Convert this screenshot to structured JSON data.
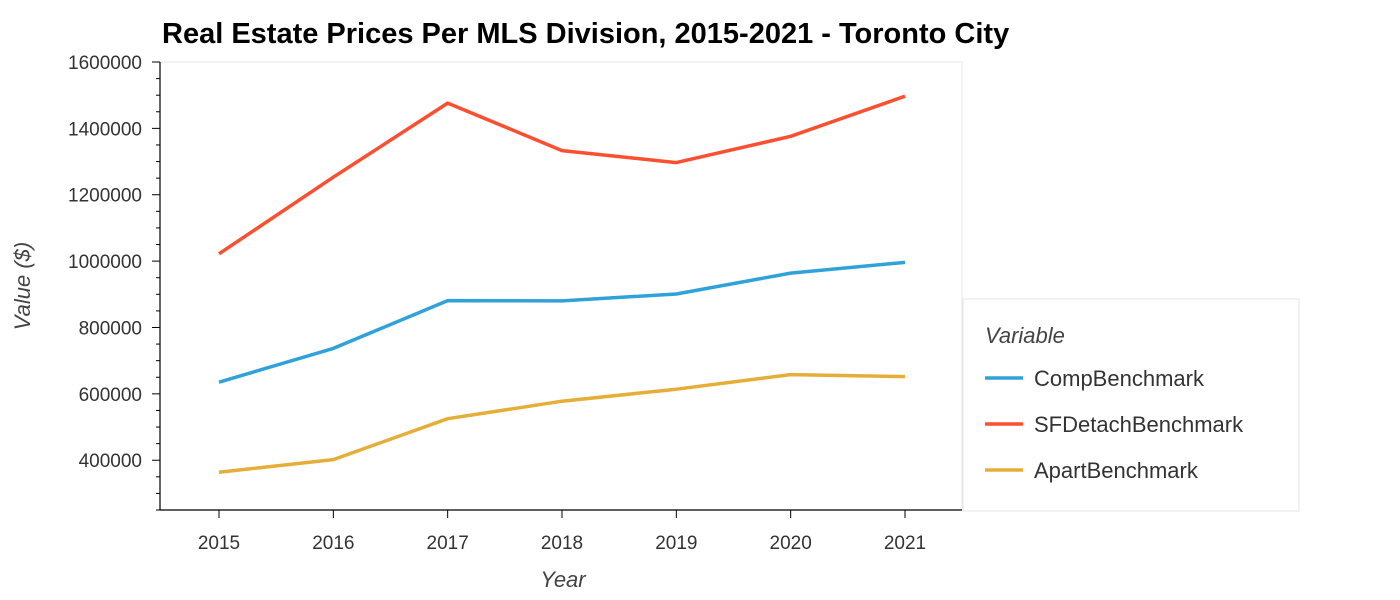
{
  "chart_data": {
    "type": "line",
    "title": "Real Estate Prices Per MLS Division, 2015-2021 - Toronto City",
    "xlabel": "Year",
    "ylabel": "Value ($)",
    "x": [
      2015,
      2016,
      2017,
      2018,
      2019,
      2020,
      2021
    ],
    "x_tick_labels": [
      "2015",
      "2016",
      "2017",
      "2018",
      "2019",
      "2020",
      "2021"
    ],
    "ylim": [
      250000,
      1600000
    ],
    "y_ticks": [
      400000,
      600000,
      800000,
      1000000,
      1200000,
      1400000,
      1600000
    ],
    "y_tick_labels": [
      "400000",
      "600000",
      "800000",
      "1000000",
      "1200000",
      "1400000",
      "1600000"
    ],
    "grid": false,
    "legend": {
      "title": "Variable",
      "placement": "right"
    },
    "series": [
      {
        "name": "CompBenchmark",
        "color": "#30a2da",
        "values": [
          635000,
          737000,
          881000,
          880000,
          901000,
          964000,
          996000
        ]
      },
      {
        "name": "SFDetachBenchmark",
        "color": "#fc4f30",
        "values": [
          1022000,
          1253000,
          1476000,
          1333000,
          1297000,
          1376000,
          1497000
        ]
      },
      {
        "name": "ApartBenchmark",
        "color": "#e5ae38",
        "values": [
          364000,
          402000,
          525000,
          578000,
          614000,
          658000,
          652000
        ]
      }
    ]
  }
}
